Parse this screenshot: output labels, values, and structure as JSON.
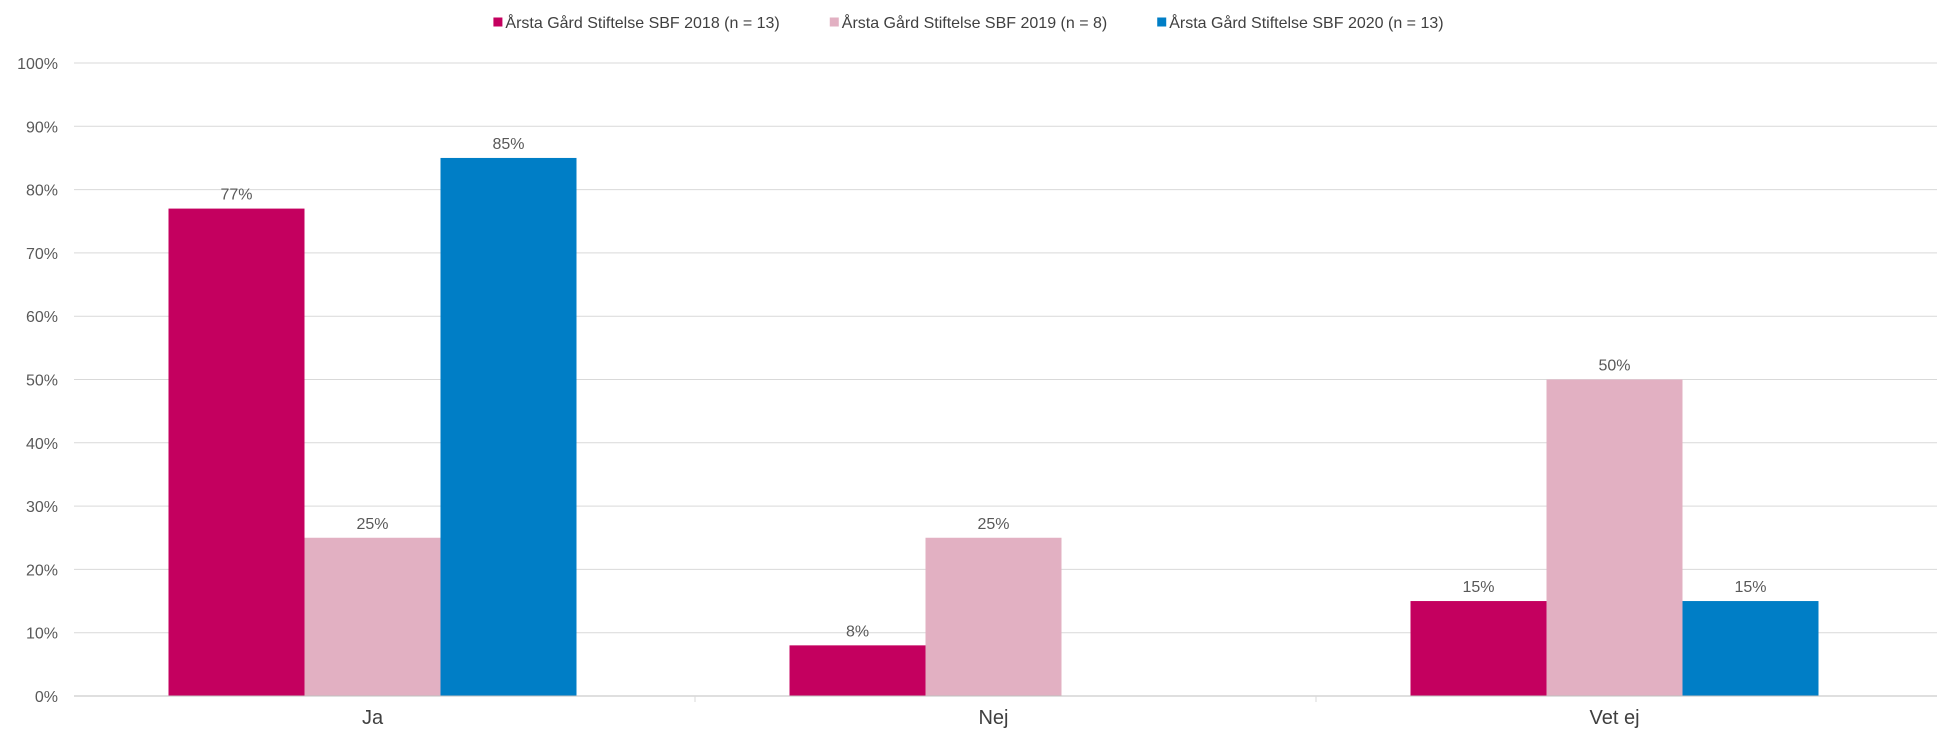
{
  "chart_data": {
    "type": "bar",
    "title": "",
    "xlabel": "",
    "ylabel": "",
    "categories": [
      "Ja",
      "Nej",
      "Vet ej"
    ],
    "series": [
      {
        "name": "Årsta Gård Stiftelse SBF 2018 (n = 13)",
        "color": "#C4005F",
        "values": [
          77,
          8,
          15
        ],
        "labels": [
          "77%",
          "8%",
          "15%"
        ]
      },
      {
        "name": "Årsta Gård Stiftelse SBF 2019 (n = 8)",
        "color": "#E2B0C2",
        "values": [
          25,
          25,
          50
        ],
        "labels": [
          "25%",
          "25%",
          "50%"
        ]
      },
      {
        "name": "Årsta Gård Stiftelse SBF 2020 (n = 13)",
        "color": "#007EC6",
        "values": [
          85,
          null,
          15
        ],
        "labels": [
          "85%",
          null,
          "15%"
        ]
      }
    ],
    "yticks": [
      0,
      10,
      20,
      30,
      40,
      50,
      60,
      70,
      80,
      90,
      100
    ],
    "ytick_labels": [
      "0%",
      "10%",
      "20%",
      "30%",
      "40%",
      "50%",
      "60%",
      "70%",
      "80%",
      "90%",
      "100%"
    ],
    "ylim": [
      0,
      100
    ],
    "grid": true,
    "legend_position": "top"
  }
}
